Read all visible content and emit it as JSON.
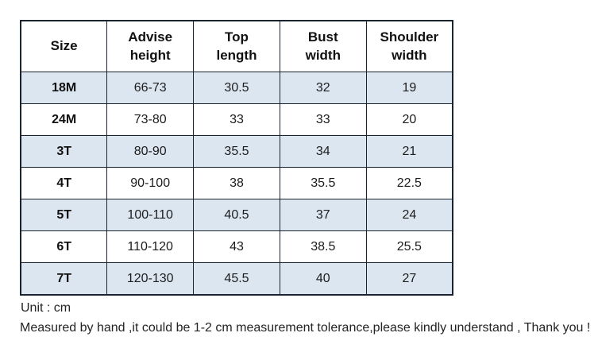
{
  "table": {
    "columns": [
      "Size",
      "Advise\nheight",
      "Top\nlength",
      "Bust\nwidth",
      "Shoulder\nwidth"
    ],
    "rows": [
      [
        "18M",
        "66-73",
        "30.5",
        "32",
        "19"
      ],
      [
        "24M",
        "73-80",
        "33",
        "33",
        "20"
      ],
      [
        "3T",
        "80-90",
        "35.5",
        "34",
        "21"
      ],
      [
        "4T",
        "90-100",
        "38",
        "35.5",
        "22.5"
      ],
      [
        "5T",
        "100-110",
        "40.5",
        "37",
        "24"
      ],
      [
        "6T",
        "110-120",
        "43",
        "38.5",
        "25.5"
      ],
      [
        "7T",
        "120-130",
        "45.5",
        "40",
        "27"
      ]
    ]
  },
  "notes": {
    "unit": "Unit : cm",
    "disclaimer": "Measured by hand ,it could be 1-2 cm measurement tolerance,please kindly understand , Thank you !"
  },
  "colors": {
    "alt_row_bg": "#dce6f1",
    "row_bg": "#ffffff",
    "grid_border": "#1a2430",
    "text": "#1c1c1c"
  }
}
